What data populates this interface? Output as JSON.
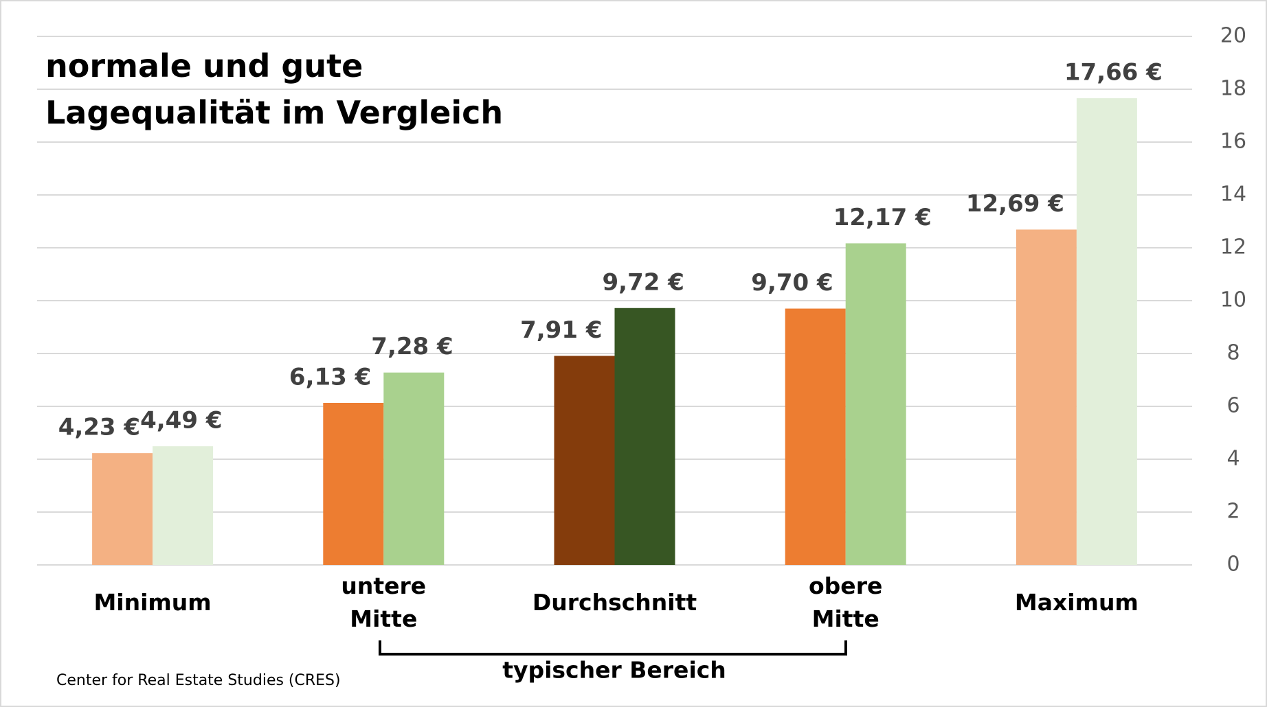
{
  "chart_data": {
    "type": "bar",
    "title": "normale und gute\nLagequalität im Vergleich",
    "categories": [
      "Minimum",
      "untere\nMitte",
      "Durchschnitt",
      "obere\nMitte",
      "Maximum"
    ],
    "series": [
      {
        "colors": [
          "#f4b183",
          "#ed7d31",
          "#843c0c",
          "#ed7d31",
          "#f4b183"
        ],
        "values": [
          4.23,
          6.13,
          7.91,
          9.7,
          12.69
        ],
        "value_labels": [
          "4,23 €",
          "6,13 €",
          "7,91 €",
          "9,70 €",
          "12,69 €"
        ]
      },
      {
        "colors": [
          "#e2efda",
          "#a9d18e",
          "#375623",
          "#a9d18e",
          "#e2efda"
        ],
        "values": [
          4.49,
          7.28,
          9.72,
          12.17,
          17.66
        ],
        "value_labels": [
          "4,49 €",
          "7,28 €",
          "9,72 €",
          "12,17 €",
          "17,66 €"
        ]
      }
    ],
    "ylim": [
      0,
      20
    ],
    "yticks": [
      0,
      2,
      4,
      6,
      8,
      10,
      12,
      14,
      16,
      18,
      20
    ],
    "grid": true,
    "annotations": [
      "typischer Bereich"
    ],
    "source": "Center for Real Estate Studies (CRES)"
  }
}
